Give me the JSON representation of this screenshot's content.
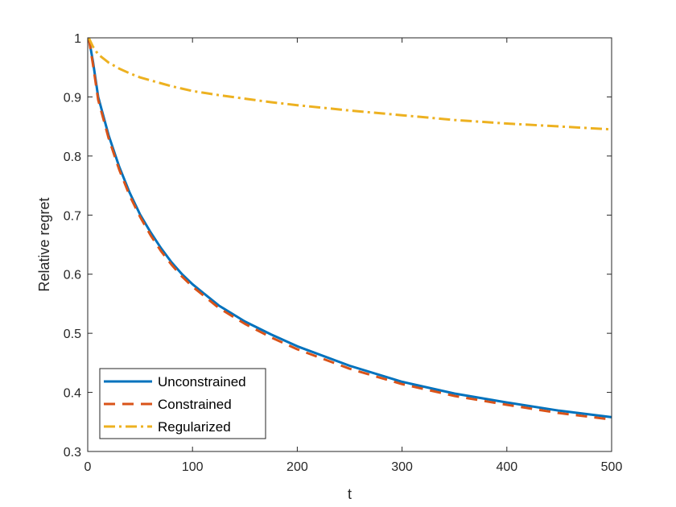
{
  "chart_data": {
    "type": "line",
    "xlabel": "t",
    "ylabel": "Relative regret",
    "xlim": [
      0,
      500
    ],
    "ylim": [
      0.3,
      1
    ],
    "xticks": [
      0,
      100,
      200,
      300,
      400,
      500
    ],
    "yticks": [
      0.3,
      0.4,
      0.5,
      0.6,
      0.7,
      0.8,
      0.9,
      1
    ],
    "ytick_labels": [
      "0.3",
      "0.4",
      "0.5",
      "0.6",
      "0.7",
      "0.8",
      "0.9",
      "1"
    ],
    "grid": false,
    "legend_position": "bottom-left",
    "x": [
      1,
      5,
      10,
      20,
      30,
      40,
      50,
      60,
      70,
      80,
      90,
      100,
      125,
      150,
      175,
      200,
      250,
      300,
      350,
      400,
      450,
      500
    ],
    "series": [
      {
        "name": "Unconstrained",
        "color": "#0072BD",
        "style": "solid",
        "values": [
          1.0,
          0.96,
          0.9,
          0.835,
          0.782,
          0.738,
          0.701,
          0.671,
          0.644,
          0.62,
          0.6,
          0.583,
          0.547,
          0.52,
          0.498,
          0.478,
          0.445,
          0.418,
          0.398,
          0.383,
          0.369,
          0.358
        ]
      },
      {
        "name": "Constrained",
        "color": "#D95319",
        "style": "dashed",
        "values": [
          1.0,
          0.955,
          0.895,
          0.83,
          0.777,
          0.733,
          0.697,
          0.666,
          0.639,
          0.616,
          0.596,
          0.579,
          0.543,
          0.516,
          0.493,
          0.473,
          0.44,
          0.414,
          0.394,
          0.379,
          0.365,
          0.354
        ]
      },
      {
        "name": "Regularized",
        "color": "#EDB120",
        "style": "dashdot",
        "values": [
          1.0,
          0.985,
          0.972,
          0.958,
          0.948,
          0.94,
          0.933,
          0.928,
          0.923,
          0.918,
          0.914,
          0.91,
          0.903,
          0.897,
          0.891,
          0.886,
          0.877,
          0.869,
          0.861,
          0.855,
          0.85,
          0.845
        ]
      }
    ]
  }
}
